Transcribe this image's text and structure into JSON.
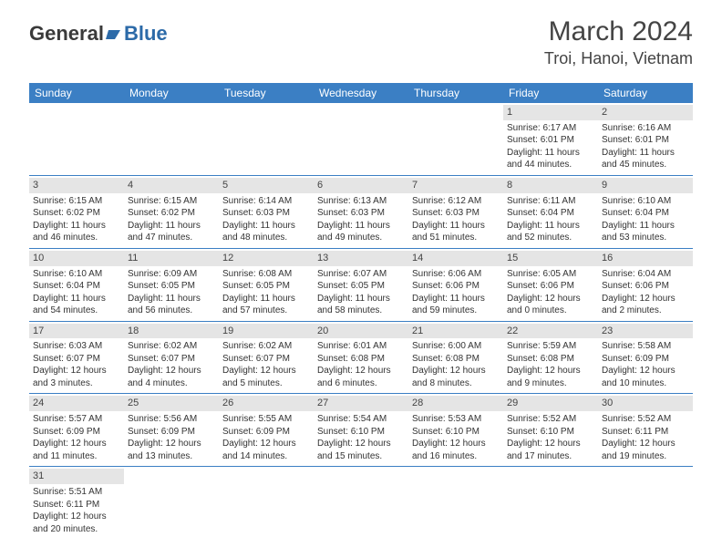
{
  "logo": {
    "part1": "General",
    "part2": "Blue"
  },
  "title": "March 2024",
  "location": "Troi, Hanoi, Vietnam",
  "colors": {
    "header_bg": "#3b7fc4",
    "header_text": "#ffffff",
    "daynum_bg": "#e5e5e5",
    "text": "#333333",
    "logo_blue": "#2c6aa8"
  },
  "day_names": [
    "Sunday",
    "Monday",
    "Tuesday",
    "Wednesday",
    "Thursday",
    "Friday",
    "Saturday"
  ],
  "weeks": [
    [
      null,
      null,
      null,
      null,
      null,
      {
        "d": "1",
        "sr": "Sunrise: 6:17 AM",
        "ss": "Sunset: 6:01 PM",
        "dl1": "Daylight: 11 hours",
        "dl2": "and 44 minutes."
      },
      {
        "d": "2",
        "sr": "Sunrise: 6:16 AM",
        "ss": "Sunset: 6:01 PM",
        "dl1": "Daylight: 11 hours",
        "dl2": "and 45 minutes."
      }
    ],
    [
      {
        "d": "3",
        "sr": "Sunrise: 6:15 AM",
        "ss": "Sunset: 6:02 PM",
        "dl1": "Daylight: 11 hours",
        "dl2": "and 46 minutes."
      },
      {
        "d": "4",
        "sr": "Sunrise: 6:15 AM",
        "ss": "Sunset: 6:02 PM",
        "dl1": "Daylight: 11 hours",
        "dl2": "and 47 minutes."
      },
      {
        "d": "5",
        "sr": "Sunrise: 6:14 AM",
        "ss": "Sunset: 6:03 PM",
        "dl1": "Daylight: 11 hours",
        "dl2": "and 48 minutes."
      },
      {
        "d": "6",
        "sr": "Sunrise: 6:13 AM",
        "ss": "Sunset: 6:03 PM",
        "dl1": "Daylight: 11 hours",
        "dl2": "and 49 minutes."
      },
      {
        "d": "7",
        "sr": "Sunrise: 6:12 AM",
        "ss": "Sunset: 6:03 PM",
        "dl1": "Daylight: 11 hours",
        "dl2": "and 51 minutes."
      },
      {
        "d": "8",
        "sr": "Sunrise: 6:11 AM",
        "ss": "Sunset: 6:04 PM",
        "dl1": "Daylight: 11 hours",
        "dl2": "and 52 minutes."
      },
      {
        "d": "9",
        "sr": "Sunrise: 6:10 AM",
        "ss": "Sunset: 6:04 PM",
        "dl1": "Daylight: 11 hours",
        "dl2": "and 53 minutes."
      }
    ],
    [
      {
        "d": "10",
        "sr": "Sunrise: 6:10 AM",
        "ss": "Sunset: 6:04 PM",
        "dl1": "Daylight: 11 hours",
        "dl2": "and 54 minutes."
      },
      {
        "d": "11",
        "sr": "Sunrise: 6:09 AM",
        "ss": "Sunset: 6:05 PM",
        "dl1": "Daylight: 11 hours",
        "dl2": "and 56 minutes."
      },
      {
        "d": "12",
        "sr": "Sunrise: 6:08 AM",
        "ss": "Sunset: 6:05 PM",
        "dl1": "Daylight: 11 hours",
        "dl2": "and 57 minutes."
      },
      {
        "d": "13",
        "sr": "Sunrise: 6:07 AM",
        "ss": "Sunset: 6:05 PM",
        "dl1": "Daylight: 11 hours",
        "dl2": "and 58 minutes."
      },
      {
        "d": "14",
        "sr": "Sunrise: 6:06 AM",
        "ss": "Sunset: 6:06 PM",
        "dl1": "Daylight: 11 hours",
        "dl2": "and 59 minutes."
      },
      {
        "d": "15",
        "sr": "Sunrise: 6:05 AM",
        "ss": "Sunset: 6:06 PM",
        "dl1": "Daylight: 12 hours",
        "dl2": "and 0 minutes."
      },
      {
        "d": "16",
        "sr": "Sunrise: 6:04 AM",
        "ss": "Sunset: 6:06 PM",
        "dl1": "Daylight: 12 hours",
        "dl2": "and 2 minutes."
      }
    ],
    [
      {
        "d": "17",
        "sr": "Sunrise: 6:03 AM",
        "ss": "Sunset: 6:07 PM",
        "dl1": "Daylight: 12 hours",
        "dl2": "and 3 minutes."
      },
      {
        "d": "18",
        "sr": "Sunrise: 6:02 AM",
        "ss": "Sunset: 6:07 PM",
        "dl1": "Daylight: 12 hours",
        "dl2": "and 4 minutes."
      },
      {
        "d": "19",
        "sr": "Sunrise: 6:02 AM",
        "ss": "Sunset: 6:07 PM",
        "dl1": "Daylight: 12 hours",
        "dl2": "and 5 minutes."
      },
      {
        "d": "20",
        "sr": "Sunrise: 6:01 AM",
        "ss": "Sunset: 6:08 PM",
        "dl1": "Daylight: 12 hours",
        "dl2": "and 6 minutes."
      },
      {
        "d": "21",
        "sr": "Sunrise: 6:00 AM",
        "ss": "Sunset: 6:08 PM",
        "dl1": "Daylight: 12 hours",
        "dl2": "and 8 minutes."
      },
      {
        "d": "22",
        "sr": "Sunrise: 5:59 AM",
        "ss": "Sunset: 6:08 PM",
        "dl1": "Daylight: 12 hours",
        "dl2": "and 9 minutes."
      },
      {
        "d": "23",
        "sr": "Sunrise: 5:58 AM",
        "ss": "Sunset: 6:09 PM",
        "dl1": "Daylight: 12 hours",
        "dl2": "and 10 minutes."
      }
    ],
    [
      {
        "d": "24",
        "sr": "Sunrise: 5:57 AM",
        "ss": "Sunset: 6:09 PM",
        "dl1": "Daylight: 12 hours",
        "dl2": "and 11 minutes."
      },
      {
        "d": "25",
        "sr": "Sunrise: 5:56 AM",
        "ss": "Sunset: 6:09 PM",
        "dl1": "Daylight: 12 hours",
        "dl2": "and 13 minutes."
      },
      {
        "d": "26",
        "sr": "Sunrise: 5:55 AM",
        "ss": "Sunset: 6:09 PM",
        "dl1": "Daylight: 12 hours",
        "dl2": "and 14 minutes."
      },
      {
        "d": "27",
        "sr": "Sunrise: 5:54 AM",
        "ss": "Sunset: 6:10 PM",
        "dl1": "Daylight: 12 hours",
        "dl2": "and 15 minutes."
      },
      {
        "d": "28",
        "sr": "Sunrise: 5:53 AM",
        "ss": "Sunset: 6:10 PM",
        "dl1": "Daylight: 12 hours",
        "dl2": "and 16 minutes."
      },
      {
        "d": "29",
        "sr": "Sunrise: 5:52 AM",
        "ss": "Sunset: 6:10 PM",
        "dl1": "Daylight: 12 hours",
        "dl2": "and 17 minutes."
      },
      {
        "d": "30",
        "sr": "Sunrise: 5:52 AM",
        "ss": "Sunset: 6:11 PM",
        "dl1": "Daylight: 12 hours",
        "dl2": "and 19 minutes."
      }
    ],
    [
      {
        "d": "31",
        "sr": "Sunrise: 5:51 AM",
        "ss": "Sunset: 6:11 PM",
        "dl1": "Daylight: 12 hours",
        "dl2": "and 20 minutes."
      },
      null,
      null,
      null,
      null,
      null,
      null
    ]
  ]
}
